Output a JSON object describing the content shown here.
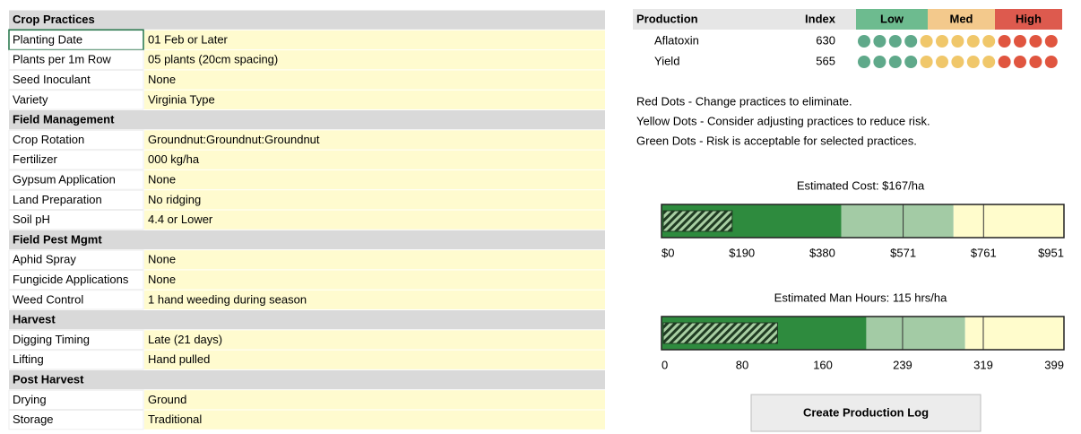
{
  "sections": [
    {
      "title": "Crop Practices",
      "rows": [
        [
          "Planting Date",
          "01 Feb or Later"
        ],
        [
          "Plants per 1m Row",
          "05 plants (20cm spacing)"
        ],
        [
          "Seed Inoculant",
          "None"
        ],
        [
          "Variety",
          "Virginia Type"
        ]
      ]
    },
    {
      "title": "Field Management",
      "rows": [
        [
          "Crop Rotation",
          "Groundnut:Groundnut:Groundnut"
        ],
        [
          "Fertilizer",
          "000 kg/ha"
        ],
        [
          "Gypsum Application",
          "None"
        ],
        [
          "Land Preparation",
          "No ridging"
        ],
        [
          "Soil pH",
          "4.4 or Lower"
        ]
      ]
    },
    {
      "title": "Field Pest Mgmt",
      "rows": [
        [
          "Aphid Spray",
          "None"
        ],
        [
          "Fungicide Applications",
          "None"
        ],
        [
          "Weed Control",
          "1 hand weeding during season"
        ]
      ]
    },
    {
      "title": "Harvest",
      "rows": [
        [
          "Digging Timing",
          "Late (21 days)"
        ],
        [
          "Lifting",
          "Hand pulled"
        ]
      ]
    },
    {
      "title": "Post Harvest",
      "rows": [
        [
          "Drying",
          "Ground"
        ],
        [
          "Storage",
          "Traditional"
        ]
      ]
    }
  ],
  "production": {
    "header": "Production",
    "index_header": "Index",
    "levels": [
      {
        "label": "Low",
        "color": "#6dbb8f"
      },
      {
        "label": "Med",
        "color": "#f3c98c"
      },
      {
        "label": "High",
        "color": "#dd5a4e"
      }
    ],
    "rows": [
      {
        "name": "Aflatoxin",
        "index": 630,
        "dots": [
          "#5fa98a",
          "#5fa98a",
          "#5fa98a",
          "#5fa98a",
          "#f0c76a",
          "#f0c76a",
          "#f0c76a",
          "#f0c76a",
          "#f0c76a",
          "#e0553f",
          "#e0553f",
          "#e0553f",
          "#e0553f"
        ]
      },
      {
        "name": "Yield",
        "index": 565,
        "dots": [
          "#5fa98a",
          "#5fa98a",
          "#5fa98a",
          "#5fa98a",
          "#f0c76a",
          "#f0c76a",
          "#f0c76a",
          "#f0c76a",
          "#f0c76a",
          "#e0553f",
          "#e0553f",
          "#e0553f",
          "#e0553f"
        ]
      }
    ]
  },
  "legend": [
    "Red Dots - Change practices to eliminate.",
    "Yellow Dots - Consider adjusting practices to reduce risk.",
    "Green Dots - Risk is acceptable for selected practices."
  ],
  "gauges": [
    {
      "title": "Estimated Cost: $167/ha",
      "value": 167,
      "xlim": [
        0,
        951
      ],
      "xticks": [
        {
          "value": 0,
          "label": "$0"
        },
        {
          "value": 190,
          "label": "$190"
        },
        {
          "value": 380,
          "label": "$380"
        },
        {
          "value": 571,
          "label": "$571"
        },
        {
          "value": 761,
          "label": "$761"
        },
        {
          "value": 951,
          "label": "$951"
        }
      ],
      "bands": [
        {
          "end": 425,
          "color": "#2e8b3e"
        },
        {
          "end": 690,
          "color": "#a3cba5"
        },
        {
          "end": 951,
          "color": "#fffccc"
        }
      ],
      "dividers": [
        571,
        761
      ]
    },
    {
      "title": "Estimated Man Hours: 115 hrs/ha",
      "value": 115,
      "xlim": [
        0,
        399
      ],
      "xticks": [
        0,
        80,
        160,
        239,
        319,
        399
      ],
      "bands": [
        {
          "end": 203,
          "color": "#2e8b3e"
        },
        {
          "end": 301,
          "color": "#a3cba5"
        },
        {
          "end": 399,
          "color": "#fffccc"
        }
      ],
      "dividers": [
        239,
        319
      ]
    }
  ],
  "button": "Create Production Log"
}
